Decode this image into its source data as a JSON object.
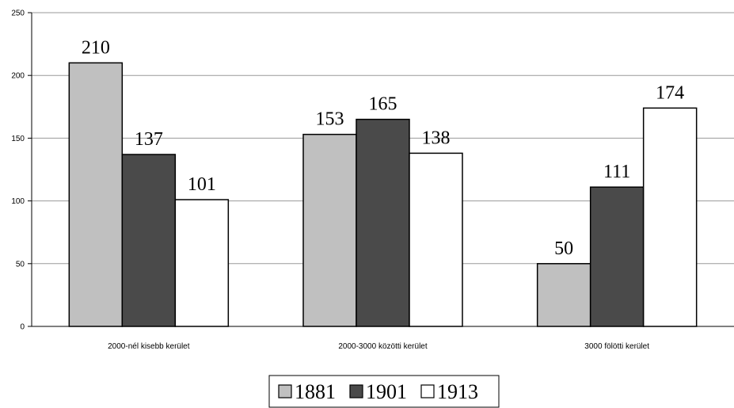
{
  "chart_data": {
    "type": "bar",
    "categories": [
      "2000-nél kisebb kerület",
      "2000-3000 közötti kerület",
      "3000 fölötti kerület"
    ],
    "series": [
      {
        "name": "1881",
        "values": [
          210,
          153,
          50
        ],
        "color": "#c0c0c0"
      },
      {
        "name": "1901",
        "values": [
          137,
          165,
          111
        ],
        "color": "#4a4a4a"
      },
      {
        "name": "1913",
        "values": [
          101,
          138,
          174
        ],
        "color": "#ffffff"
      }
    ],
    "yticks": [
      "0",
      "50",
      "100",
      "150",
      "200",
      "250"
    ],
    "ylim": [
      0,
      250
    ],
    "grid": true,
    "legend_position": "bottom-center"
  }
}
